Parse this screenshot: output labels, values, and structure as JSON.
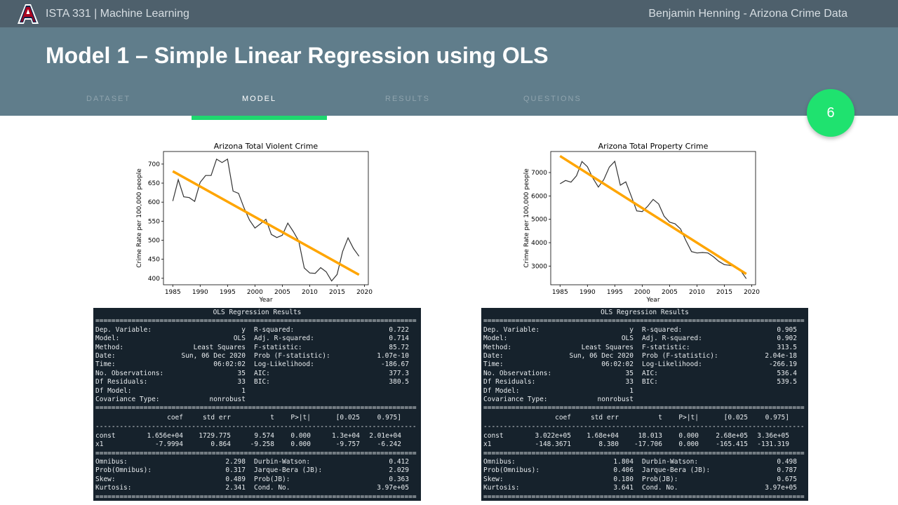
{
  "topbar": {
    "course": "ISTA 331 | Machine Learning",
    "author": "Benjamin Henning - Arizona Crime Data"
  },
  "header": {
    "title": "Model 1 – Simple Linear Regression using OLS",
    "tabs": [
      {
        "label": "DATASET",
        "active": false
      },
      {
        "label": "MODEL",
        "active": true
      },
      {
        "label": "RESULTS",
        "active": false
      },
      {
        "label": "QUESTIONS",
        "active": false
      }
    ],
    "page_number": "6"
  },
  "colors": {
    "accent": "#1fe26f",
    "fit_line": "#ffa500",
    "data_line": "#333333"
  },
  "chart_data": [
    {
      "type": "line",
      "title": "Arizona Total Violent Crime",
      "xlabel": "Year",
      "ylabel": "Crime Rate per 100,000 people",
      "xlim": [
        1983.3,
        2020.7
      ],
      "ylim": [
        383,
        733
      ],
      "xticks": [
        1985,
        1990,
        1995,
        2000,
        2005,
        2010,
        2015,
        2020
      ],
      "yticks": [
        400,
        450,
        500,
        550,
        600,
        650,
        700
      ],
      "x": [
        1985,
        1986,
        1987,
        1988,
        1989,
        1990,
        1991,
        1992,
        1993,
        1994,
        1995,
        1996,
        1997,
        1998,
        1999,
        2000,
        2001,
        2002,
        2003,
        2004,
        2005,
        2006,
        2007,
        2008,
        2009,
        2010,
        2011,
        2012,
        2013,
        2014,
        2015,
        2016,
        2017,
        2018,
        2019
      ],
      "series": [
        {
          "name": "",
          "values": [
            603,
            659,
            614,
            612,
            602,
            652,
            670,
            670,
            713,
            704,
            713,
            629,
            623,
            585,
            553,
            532,
            543,
            555,
            515,
            507,
            513,
            545,
            523,
            498,
            427,
            414,
            413,
            428,
            417,
            393,
            410,
            470,
            506,
            478,
            458
          ]
        },
        {
          "name": "",
          "fit": [
            16560.0,
            -7.9994
          ],
          "values": [
            681.1,
            673.1,
            665.1,
            657.1,
            649.1,
            641.1,
            633.1,
            625.1,
            617.1,
            609.1,
            601.2,
            593.2,
            585.2,
            577.2,
            569.2,
            561.2,
            553.2,
            545.2,
            537.2,
            529.2,
            521.2,
            513.2,
            505.2,
            497.2,
            489.2,
            481.3,
            473.3,
            465.3,
            457.3,
            449.3,
            441.3,
            433.3,
            425.3,
            417.3,
            409.3
          ]
        }
      ]
    },
    {
      "type": "line",
      "title": "Arizona Total Property Crime",
      "xlabel": "Year",
      "ylabel": "Crime Rate per 100,000 people",
      "xlim": [
        1983.3,
        2020.7
      ],
      "ylim": [
        2200,
        7900
      ],
      "xticks": [
        1985,
        1990,
        1995,
        2000,
        2005,
        2010,
        2015,
        2020
      ],
      "yticks": [
        3000,
        4000,
        5000,
        6000,
        7000
      ],
      "x": [
        1985,
        1986,
        1987,
        1988,
        1989,
        1990,
        1991,
        1992,
        1993,
        1994,
        1995,
        1996,
        1997,
        1998,
        1999,
        2000,
        2001,
        2002,
        2003,
        2004,
        2005,
        2006,
        2007,
        2008,
        2009,
        2010,
        2011,
        2012,
        2013,
        2014,
        2015,
        2016,
        2017,
        2018,
        2019
      ],
      "series": [
        {
          "name": "",
          "values": [
            6520,
            6660,
            6590,
            6860,
            7470,
            7250,
            6760,
            6380,
            6700,
            7230,
            7480,
            6460,
            6600,
            5990,
            5360,
            5330,
            5560,
            5850,
            5660,
            5130,
            4880,
            4810,
            4590,
            4080,
            3620,
            3560,
            3580,
            3560,
            3400,
            3200,
            3060,
            3030,
            2980,
            2800,
            2460
          ]
        },
        {
          "name": "",
          "fit": [
            302200.0,
            -148.3671
          ],
          "values": [
            7706.9,
            7558.5,
            7410.2,
            7261.8,
            7113.4,
            6965.1,
            6816.7,
            6668.3,
            6520.0,
            6371.6,
            6223.3,
            6074.9,
            5926.5,
            5778.2,
            5629.8,
            5481.5,
            5333.1,
            5184.7,
            5036.4,
            4888.0,
            4739.6,
            4591.3,
            4442.9,
            4294.6,
            4146.2,
            3997.8,
            3849.5,
            3701.1,
            3552.7,
            3404.4,
            3256.0,
            3107.7,
            2959.3,
            2810.9,
            2662.6
          ]
        }
      ]
    }
  ],
  "ols": [
    {
      "caption": "OLS Regression Results",
      "summary": [
        [
          "Dep. Variable:",
          "y",
          "R-squared:",
          "0.722"
        ],
        [
          "Model:",
          "OLS",
          "Adj. R-squared:",
          "0.714"
        ],
        [
          "Method:",
          "Least Squares",
          "F-statistic:",
          "85.72"
        ],
        [
          "Date:",
          "Sun, 06 Dec 2020",
          "Prob (F-statistic):",
          "1.07e-10"
        ],
        [
          "Time:",
          "06:02:02",
          "Log-Likelihood:",
          "-186.67"
        ],
        [
          "No. Observations:",
          "35",
          "AIC:",
          "377.3"
        ],
        [
          "Df Residuals:",
          "33",
          "BIC:",
          "380.5"
        ],
        [
          "Df Model:",
          "1",
          "",
          ""
        ],
        [
          "Covariance Type:",
          "nonrobust",
          "",
          ""
        ]
      ],
      "coef_header": [
        "",
        "coef",
        "std err",
        "t",
        "P>|t|",
        "[0.025",
        "0.975]"
      ],
      "coef_rows": [
        [
          "const",
          "1.656e+04",
          "1729.775",
          "9.574",
          "0.000",
          "1.3e+04",
          "2.01e+04"
        ],
        [
          "x1",
          "-7.9994",
          "0.864",
          "-9.258",
          "0.000",
          "-9.757",
          "-6.242"
        ]
      ],
      "diagnostics": [
        [
          "Omnibus:",
          "2.298",
          "Durbin-Watson:",
          "0.412"
        ],
        [
          "Prob(Omnibus):",
          "0.317",
          "Jarque-Bera (JB):",
          "2.029"
        ],
        [
          "Skew:",
          "0.489",
          "Prob(JB):",
          "0.363"
        ],
        [
          "Kurtosis:",
          "2.341",
          "Cond. No.",
          "3.97e+05"
        ]
      ]
    },
    {
      "caption": "OLS Regression Results",
      "summary": [
        [
          "Dep. Variable:",
          "y",
          "R-squared:",
          "0.905"
        ],
        [
          "Model:",
          "OLS",
          "Adj. R-squared:",
          "0.902"
        ],
        [
          "Method:",
          "Least Squares",
          "F-statistic:",
          "313.5"
        ],
        [
          "Date:",
          "Sun, 06 Dec 2020",
          "Prob (F-statistic):",
          "2.04e-18"
        ],
        [
          "Time:",
          "06:02:02",
          "Log-Likelihood:",
          "-266.19"
        ],
        [
          "No. Observations:",
          "35",
          "AIC:",
          "536.4"
        ],
        [
          "Df Residuals:",
          "33",
          "BIC:",
          "539.5"
        ],
        [
          "Df Model:",
          "1",
          "",
          ""
        ],
        [
          "Covariance Type:",
          "nonrobust",
          "",
          ""
        ]
      ],
      "coef_header": [
        "",
        "coef",
        "std err",
        "t",
        "P>|t|",
        "[0.025",
        "0.975]"
      ],
      "coef_rows": [
        [
          "const",
          "3.022e+05",
          "1.68e+04",
          "18.013",
          "0.000",
          "2.68e+05",
          "3.36e+05"
        ],
        [
          "x1",
          "-148.3671",
          "8.380",
          "-17.706",
          "0.000",
          "-165.415",
          "-131.319"
        ]
      ],
      "diagnostics": [
        [
          "Omnibus:",
          "1.804",
          "Durbin-Watson:",
          "0.498"
        ],
        [
          "Prob(Omnibus):",
          "0.406",
          "Jarque-Bera (JB):",
          "0.787"
        ],
        [
          "Skew:",
          "0.180",
          "Prob(JB):",
          "0.675"
        ],
        [
          "Kurtosis:",
          "3.641",
          "Cond. No.",
          "3.97e+05"
        ]
      ]
    }
  ]
}
